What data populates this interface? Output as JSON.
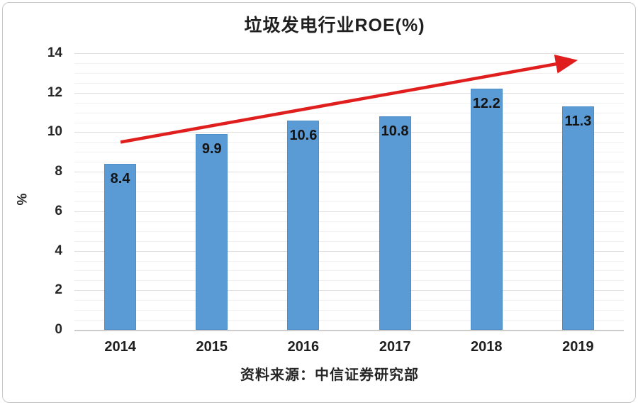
{
  "chart_data": {
    "type": "bar",
    "title": "垃圾发电行业ROE(%)",
    "categories": [
      "2014",
      "2015",
      "2016",
      "2017",
      "2018",
      "2019"
    ],
    "values": [
      8.4,
      9.9,
      10.6,
      10.8,
      12.2,
      11.3
    ],
    "value_labels": [
      "8.4",
      "9.9",
      "10.6",
      "10.8",
      "12.2",
      "11.3"
    ],
    "xlabel": "",
    "ylabel": "%",
    "ylim": [
      0,
      14
    ],
    "y_major_step": 2,
    "y_minor_step": 0.5,
    "y_tick_labels": [
      "0",
      "2",
      "4",
      "6",
      "8",
      "10",
      "12",
      "14"
    ],
    "grid": true,
    "legend": "none",
    "bar_color": "#5b9bd5",
    "bar_border_color": "#4c8ec9",
    "label_color": "#141414",
    "source_note": "资料来源：中信证券研究部",
    "trend_arrow": {
      "color": "#e01e1e",
      "from_x_frac": 0.084,
      "from_value": 9.5,
      "to_x_frac": 0.906,
      "to_value": 13.6
    }
  }
}
